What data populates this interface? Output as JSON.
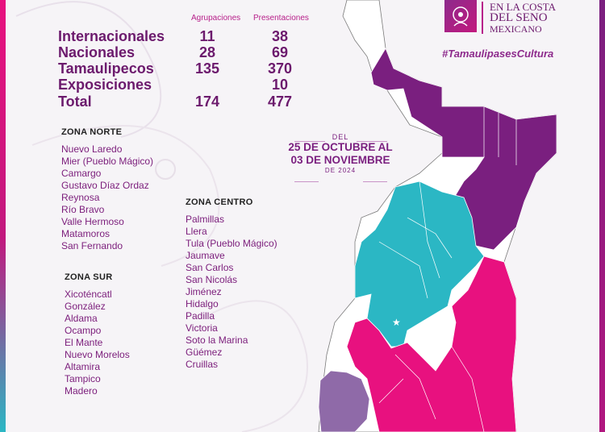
{
  "stats": {
    "header_a": "Agrupaciones",
    "header_b": "Presentaciones",
    "rows": [
      {
        "label": "Internacionales",
        "a": "11",
        "b": "38"
      },
      {
        "label": "Nacionales",
        "a": "28",
        "b": "69"
      },
      {
        "label": "Tamaulipecos",
        "a": "135",
        "b": "370"
      },
      {
        "label": "Exposiciones",
        "a": "",
        "b": "10"
      },
      {
        "label": "Total",
        "a": "174",
        "b": "477"
      }
    ]
  },
  "zona_norte": {
    "title": "ZONA NORTE",
    "items": [
      "Nuevo Laredo",
      "Mier (Pueblo Mágico)",
      "Camargo",
      "Gustavo Díaz Ordaz",
      "Reynosa",
      "Río Bravo",
      "Valle Hermoso",
      "Matamoros",
      "San Fernando"
    ]
  },
  "zona_centro": {
    "title": "ZONA CENTRO",
    "items": [
      "Palmillas",
      "Llera",
      "Tula (Pueblo Mágico)",
      "Jaumave",
      "San Carlos",
      "San Nicolás",
      "Jiménez",
      "Hidalgo",
      "Padilla",
      "Victoria",
      "Soto la Marina",
      "Güémez",
      "Cruillas"
    ]
  },
  "zona_sur": {
    "title": "ZONA SUR",
    "items": [
      "Xicoténcatl",
      "González",
      "Aldama",
      "Ocampo",
      "El Mante",
      "Nuevo Morelos",
      "Altamira",
      "Tampico",
      "Madero"
    ]
  },
  "dates": {
    "del": "DEL",
    "line1": "25 DE OCTUBRE AL",
    "line2": "03 DE NOVIEMBRE",
    "year": "DE 2024"
  },
  "logo": {
    "line1": "EN LA COSTA",
    "line2": "DEL SENO",
    "line3": "MEXICANO",
    "hashtag": "#TamaulipasesCultura"
  },
  "colors": {
    "norte": "#7a1f7f",
    "centro": "#2bb7c4",
    "sur": "#e8117f",
    "tula": "#8f6aa8",
    "other": "#ffffff",
    "text": "#6c1a6d"
  }
}
